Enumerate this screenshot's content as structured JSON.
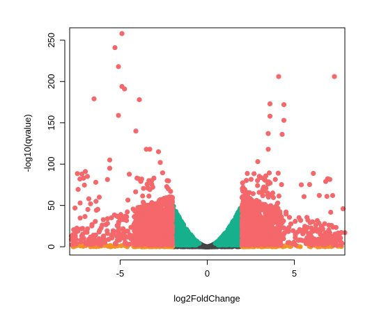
{
  "chart_data": {
    "type": "scatter",
    "xlabel": "log2FoldChange",
    "ylabel": "-log10(qvalue)",
    "xlim": [
      -7.9,
      7.9
    ],
    "ylim": [
      -10,
      265
    ],
    "x_ticks": [
      -5,
      0,
      5
    ],
    "y_ticks": [
      0,
      50,
      100,
      150,
      200,
      250
    ],
    "grid": false,
    "colors": {
      "not_significant": "#444444",
      "low_fold_change": "#17B08D",
      "low_significance": "#F29425",
      "significant": "#F4676A"
    },
    "labeled_points": [
      {
        "x": -4.9,
        "y": 258
      },
      {
        "x": -5.3,
        "y": 241
      },
      {
        "x": -5.1,
        "y": 218
      },
      {
        "x": -4.9,
        "y": 194
      },
      {
        "x": -4.75,
        "y": 191
      },
      {
        "x": -6.5,
        "y": 179
      },
      {
        "x": -3.9,
        "y": 178
      },
      {
        "x": -5.1,
        "y": 159
      },
      {
        "x": -4.1,
        "y": 140
      },
      {
        "x": -3.5,
        "y": 118
      },
      {
        "x": -3.3,
        "y": 118
      },
      {
        "x": -2.8,
        "y": 115
      },
      {
        "x": -5.6,
        "y": 105
      },
      {
        "x": -5.6,
        "y": 95
      },
      {
        "x": -7.2,
        "y": 88
      },
      {
        "x": -7.0,
        "y": 91
      },
      {
        "x": -7.1,
        "y": 83
      },
      {
        "x": -6.4,
        "y": 78
      },
      {
        "x": -7.3,
        "y": 53
      },
      {
        "x": -6.8,
        "y": 58
      },
      {
        "x": -6.2,
        "y": 60
      },
      {
        "x": -2.3,
        "y": 80
      },
      {
        "x": -2.7,
        "y": 102
      },
      {
        "x": 4.1,
        "y": 206
      },
      {
        "x": 7.3,
        "y": 206
      },
      {
        "x": 3.6,
        "y": 173
      },
      {
        "x": 4.4,
        "y": 172
      },
      {
        "x": 3.6,
        "y": 158
      },
      {
        "x": 4.4,
        "y": 153
      },
      {
        "x": 3.5,
        "y": 137
      },
      {
        "x": 4.3,
        "y": 136
      },
      {
        "x": 3.5,
        "y": 118
      },
      {
        "x": 2.9,
        "y": 103
      },
      {
        "x": 6.9,
        "y": 82
      },
      {
        "x": 6.8,
        "y": 79
      },
      {
        "x": 5.4,
        "y": 75
      },
      {
        "x": 7.2,
        "y": 62
      },
      {
        "x": 7.8,
        "y": 46
      },
      {
        "x": 7.9,
        "y": 17
      },
      {
        "x": 7.1,
        "y": 6
      },
      {
        "x": 6.1,
        "y": 3
      }
    ],
    "bulk_distribution": {
      "fold_change_threshold": 2,
      "low_significance_threshold": 2,
      "point_count": 4200,
      "seed": 7
    }
  }
}
